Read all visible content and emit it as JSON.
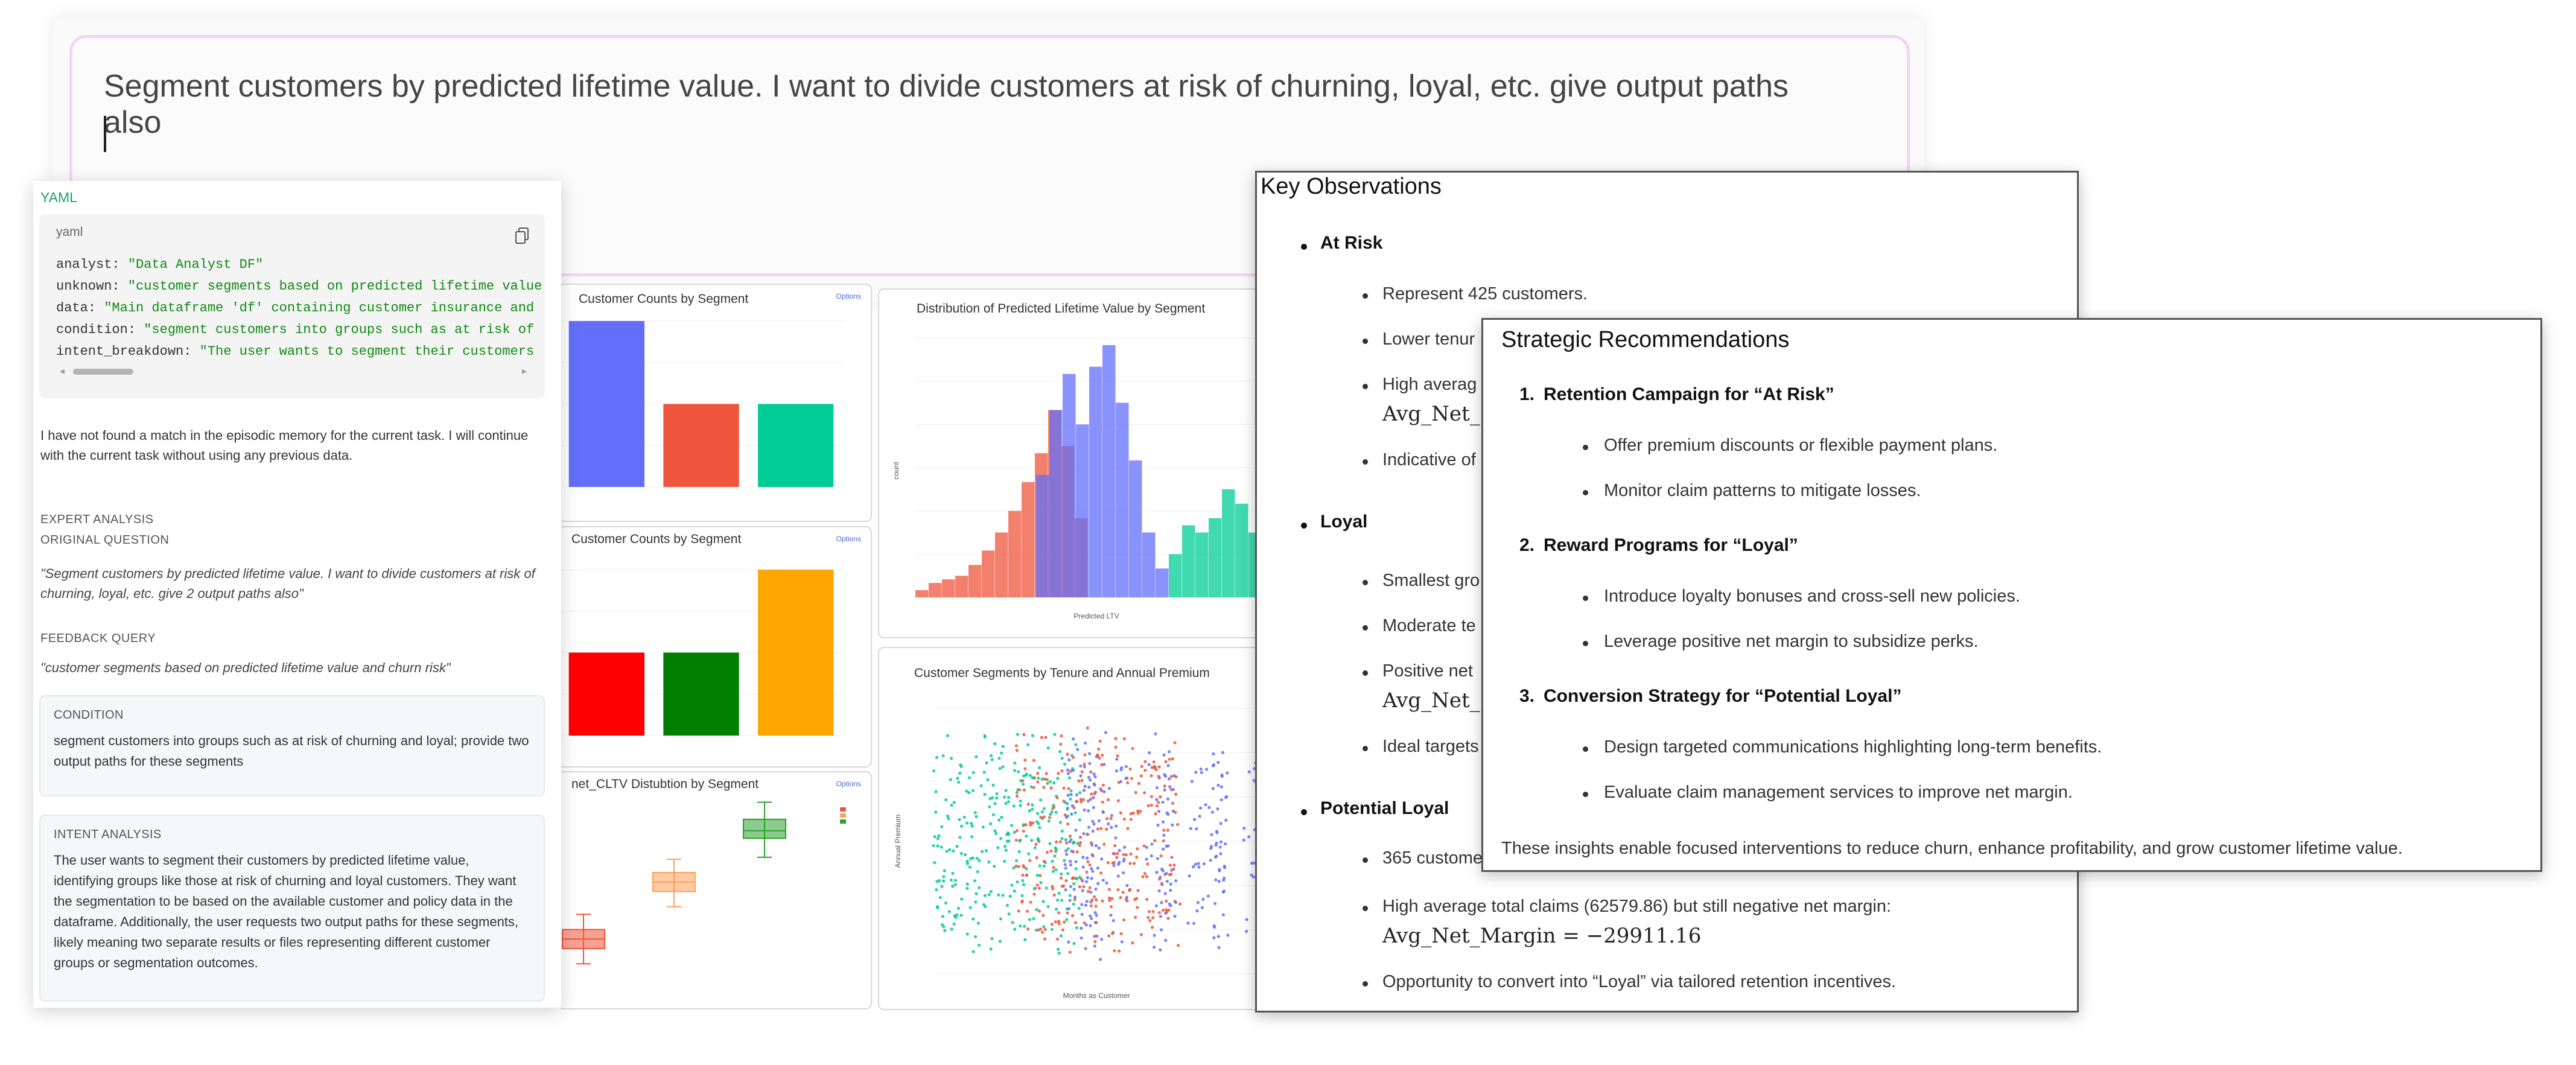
{
  "prompt": {
    "text": "Segment customers by predicted lifetime value. I want to divide customers at risk of churning, loyal, etc. give output paths also"
  },
  "left_panel": {
    "yaml_label": "YAML",
    "code_lang": "yaml",
    "code_lines": [
      {
        "key": "analyst: ",
        "value": "\"Data Analyst DF\""
      },
      {
        "key": "unknown: ",
        "value": "\"customer segments based on predicted lifetime value"
      },
      {
        "key": "data: ",
        "value": "\"Main dataframe 'df' containing customer insurance and"
      },
      {
        "key": "condition: ",
        "value": "\"segment customers into groups such as at risk of"
      },
      {
        "key": "intent_breakdown: ",
        "value": "\"The user wants to segment their customers"
      }
    ],
    "memory_note": "I have not found a match in the episodic memory for the current task. I will continue with the current task without using any previous data.",
    "expert_analysis": "EXPERT ANALYSIS",
    "original_question_label": "ORIGINAL QUESTION",
    "original_question": "\"Segment customers by predicted lifetime value. I want to divide customers at risk of churning, loyal, etc. give 2 output paths also\"",
    "feedback_query_label": "FEEDBACK QUERY",
    "feedback_query": "\"customer segments based on predicted lifetime value and churn risk\"",
    "condition_label": "CONDITION",
    "condition_text": "segment customers into groups such as at risk of churning and loyal; provide two output paths for these segments",
    "intent_label": "INTENT ANALYSIS",
    "intent_text": "The user wants to segment their customers by predicted lifetime value, identifying groups like those at risk of churning and loyal customers. They want the segmentation to be based on the available customer and policy data in the dataframe. Additionally, the user requests two output paths for these segments, likely meaning two separate results or files representing different customer groups or segmentation outcomes."
  },
  "charts": {
    "counts1_title": "Customer Counts by Segment",
    "counts2_title": "Customer Counts by Segment",
    "box_title": "net_CLTV Distubtion by Segment",
    "hist_title": "Distribution of Predicted Lifetime Value by Segment",
    "scatter_title": "Customer Segments by Tenure and Annual Premium",
    "tools_label": "Options"
  },
  "chart_data": [
    {
      "type": "bar",
      "title": "Customer Counts by Segment",
      "categories": [
        "",
        "",
        ""
      ],
      "values": [
        100,
        50,
        50
      ],
      "colors": [
        "#636efa",
        "#ef553b",
        "#00cc96"
      ]
    },
    {
      "type": "bar",
      "title": "Customer Counts by Segment",
      "categories": [
        "",
        "",
        ""
      ],
      "values": [
        35,
        35,
        70
      ],
      "colors": [
        "#ff0000",
        "#008000",
        "#ffa500"
      ]
    },
    {
      "type": "box",
      "title": "net_CLTV Distubtion by Segment",
      "series": [
        {
          "min": 0.12,
          "q1": 0.2,
          "median": 0.25,
          "q3": 0.3,
          "max": 0.38,
          "color": "#ef553b"
        },
        {
          "min": 0.42,
          "q1": 0.5,
          "median": 0.55,
          "q3": 0.6,
          "max": 0.67,
          "color": "#ffa15a"
        },
        {
          "min": 0.68,
          "q1": 0.78,
          "median": 0.82,
          "q3": 0.88,
          "max": 0.97,
          "color": "#2ca02c"
        }
      ]
    },
    {
      "type": "histogram",
      "title": "Distribution of Predicted Lifetime Value by Segment",
      "xlabel": "Predicted LTV",
      "ylabel": "count",
      "series": [
        {
          "color": "#ef553b",
          "values": [
            2,
            4,
            5,
            6,
            9,
            13,
            18,
            24,
            32,
            40,
            52,
            42,
            22
          ]
        },
        {
          "color": "#636efa",
          "values": [
            34,
            52,
            62,
            48,
            64,
            70,
            54,
            38,
            18,
            8
          ]
        },
        {
          "color": "#00cc96",
          "values": [
            12,
            20,
            18,
            22,
            30,
            26,
            18,
            10
          ]
        }
      ]
    },
    {
      "type": "scatter",
      "title": "Customer Segments by Tenure and Annual Premium",
      "xlabel": "Months as Customer",
      "ylabel": "Annual Premium"
    }
  ],
  "observations": {
    "title": "Key Observations",
    "groups": [
      {
        "head": "At Risk",
        "items": [
          "Represent 425 customers.",
          "Lower tenur",
          "High averag",
          "Avg_Net_",
          "Indicative of"
        ]
      },
      {
        "head": "Loyal",
        "items": [
          "Smallest gro",
          "Moderate te",
          "Positive net",
          "Avg_Net_",
          "Ideal targets"
        ]
      },
      {
        "head": "Potential Loyal",
        "items": [
          "365 custome",
          "High average total claims (62579.86) but still negative net margin:",
          "Avg_Net_Margin = −29911.16",
          "Opportunity to convert into “Loyal” via tailored retention incentives."
        ]
      }
    ]
  },
  "recommendations": {
    "title": "Strategic Recommendations",
    "items": [
      {
        "num": "1.",
        "head": "Retention Campaign for “At Risk”",
        "bullets": [
          "Offer premium discounts or flexible payment plans.",
          "Monitor claim patterns to mitigate losses."
        ]
      },
      {
        "num": "2.",
        "head": "Reward Programs for “Loyal”",
        "bullets": [
          "Introduce loyalty bonuses and cross-sell new policies.",
          "Leverage positive net margin to subsidize perks."
        ]
      },
      {
        "num": "3.",
        "head": "Conversion Strategy for “Potential Loyal”",
        "bullets": [
          "Design targeted communications highlighting long-term benefits.",
          "Evaluate claim management services to improve net margin."
        ]
      }
    ],
    "footer": "These insights enable focused interventions to reduce churn, enhance profitability, and grow customer lifetime value."
  }
}
